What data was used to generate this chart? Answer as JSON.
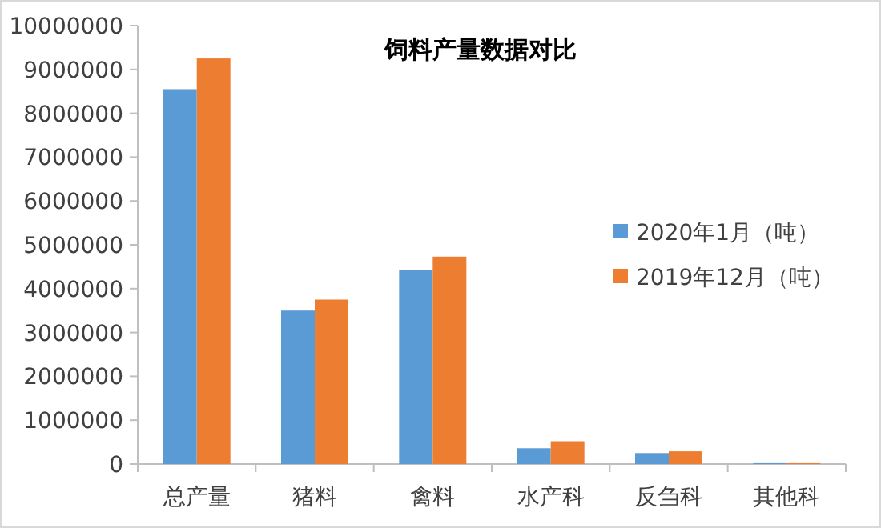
{
  "chart_data": {
    "type": "bar",
    "title": "饲料产量数据对比",
    "categories": [
      "总产量",
      "猪料",
      "禽料",
      "水产科",
      "反刍科",
      "其他科"
    ],
    "series": [
      {
        "name": "2020年1月（吨）",
        "color": "#5b9bd5",
        "values": [
          8550000,
          3500000,
          4420000,
          360000,
          250000,
          20000
        ]
      },
      {
        "name": "2019年12月（吨）",
        "color": "#ed7d31",
        "values": [
          9250000,
          3750000,
          4730000,
          520000,
          290000,
          20000
        ]
      }
    ],
    "ylim": [
      0,
      10000000
    ],
    "yticks": [
      0,
      1000000,
      2000000,
      3000000,
      4000000,
      5000000,
      6000000,
      7000000,
      8000000,
      9000000,
      10000000
    ],
    "grid": false,
    "legend": "right"
  }
}
